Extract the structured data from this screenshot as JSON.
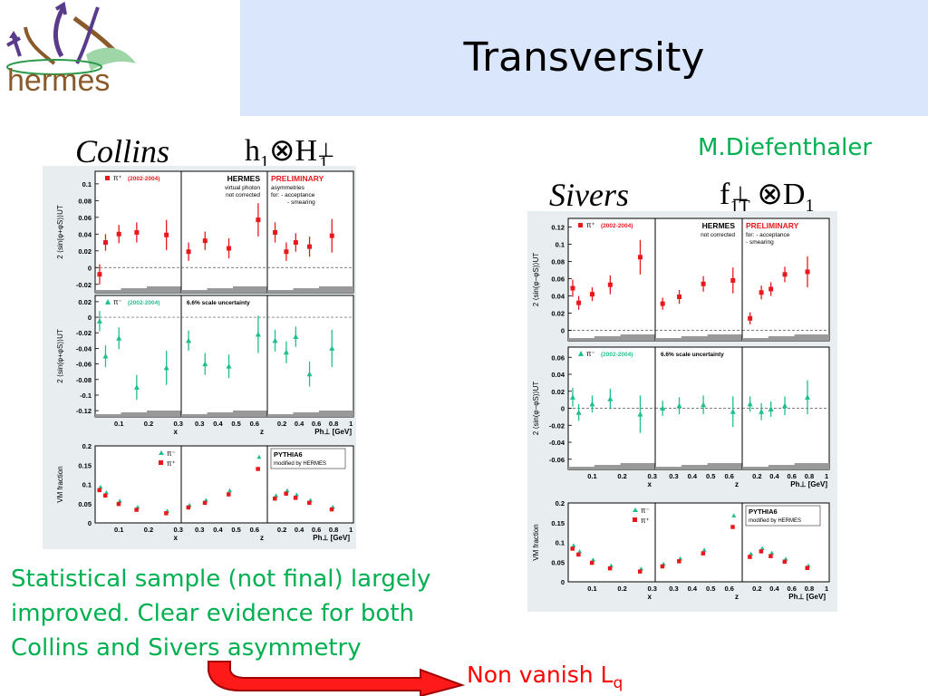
{
  "slide": {
    "title": "Transversity",
    "logo_text": "hermes",
    "author": "M.Diefenthaler",
    "summary_line1": "Statistical sample (not final) largely",
    "summary_line2": "improved. Clear evidence for both",
    "summary_line3": "Collins and Sivers asymmetry",
    "conclusion_main": "Non vanish L",
    "conclusion_sub": "q",
    "collins_label": "Collins",
    "collins_formula_h": "h",
    "collins_formula_h_sub": "1",
    "collins_formula_H": "H",
    "collins_formula_H_sub": "1",
    "collins_formula_H_sup": "⊥",
    "sivers_label": "Sivers",
    "sivers_formula_f": "f",
    "sivers_formula_f_sub": "1T",
    "sivers_formula_f_sup": "⊥",
    "sivers_formula_D": "D",
    "sivers_formula_D_sub": "1",
    "otimes": "⊗",
    "colors": {
      "title_bg": "#d9e6fc",
      "green": "#00b050",
      "red": "#ff0000",
      "pi_plus": "#e8191c",
      "pi_minus": "#1fbf8f",
      "logo_brown": "#8a5a2b",
      "logo_purple": "#5a3a8a"
    }
  },
  "chart_data": [
    {
      "id": "collins",
      "type": "scatter",
      "panel_texts": {
        "hermes": "HERMES",
        "hermes_note1": "virtual photon",
        "hermes_note2": "not corrected",
        "preliminary": "PRELIMINARY",
        "prelim_note1": "asymmetries",
        "prelim_note2": "for: - acceptance",
        "prelim_note3": "- smearing",
        "scale_unc": "6.6% scale uncertainty",
        "pythia1": "PYTHIA6",
        "pythia2": "modified by HERMES"
      },
      "rows": [
        {
          "ylabel": "2 ⟨sin(φ+φS)⟩UT",
          "ylim": [
            -0.03,
            0.115
          ],
          "yticks": [
            "-0.02",
            "0",
            "0.02",
            "0.04",
            "0.06",
            "0.08",
            "0.1"
          ],
          "ytick_vals": [
            -0.02,
            0,
            0.02,
            0.04,
            0.06,
            0.08,
            0.1
          ],
          "legend_symbol": "π⁺",
          "legend_period": "(2002-2004)",
          "series": [
            {
              "name": "π⁺",
              "color": "#e8191c",
              "marker": "square",
              "x_points": [
                [
                  0.035,
                  -0.008,
                  0.012
                ],
                [
                  0.055,
                  0.03,
                  0.01
                ],
                [
                  0.1,
                  0.04,
                  0.011
                ],
                [
                  0.16,
                  0.042,
                  0.012
                ],
                [
                  0.26,
                  0.039,
                  0.018
                ]
              ],
              "z_points": [
                [
                  0.24,
                  0.019,
                  0.011
                ],
                [
                  0.33,
                  0.032,
                  0.011
                ],
                [
                  0.46,
                  0.023,
                  0.012
                ],
                [
                  0.62,
                  0.057,
                  0.02
                ]
              ],
              "pt_points": [
                [
                  0.12,
                  0.042,
                  0.012
                ],
                [
                  0.25,
                  0.019,
                  0.011
                ],
                [
                  0.36,
                  0.03,
                  0.011
                ],
                [
                  0.52,
                  0.025,
                  0.012
                ],
                [
                  0.78,
                  0.038,
                  0.02
                ]
              ]
            }
          ]
        },
        {
          "ylabel": "2 ⟨sin(φ+φS)⟩UT",
          "ylim": [
            -0.128,
            0.028
          ],
          "yticks": [
            "-0.12",
            "-0.1",
            "-0.08",
            "-0.06",
            "-0.04",
            "-0.02",
            "0",
            "0.02"
          ],
          "ytick_vals": [
            -0.12,
            -0.1,
            -0.08,
            -0.06,
            -0.04,
            -0.02,
            0,
            0.02
          ],
          "legend_symbol": "π⁻",
          "legend_period": "(2002-2004)",
          "series": [
            {
              "name": "π⁻",
              "color": "#1fbf8f",
              "marker": "triangle",
              "x_points": [
                [
                  0.035,
                  -0.005,
                  0.013
                ],
                [
                  0.055,
                  -0.05,
                  0.014
                ],
                [
                  0.1,
                  -0.027,
                  0.014
                ],
                [
                  0.16,
                  -0.09,
                  0.016
                ],
                [
                  0.26,
                  -0.065,
                  0.022
                ]
              ],
              "z_points": [
                [
                  0.24,
                  -0.03,
                  0.013
                ],
                [
                  0.33,
                  -0.06,
                  0.014
                ],
                [
                  0.46,
                  -0.063,
                  0.015
                ],
                [
                  0.62,
                  -0.022,
                  0.024
                ]
              ],
              "pt_points": [
                [
                  0.12,
                  -0.03,
                  0.014
                ],
                [
                  0.25,
                  -0.045,
                  0.014
                ],
                [
                  0.36,
                  -0.025,
                  0.013
                ],
                [
                  0.52,
                  -0.073,
                  0.016
                ],
                [
                  0.78,
                  -0.04,
                  0.024
                ]
              ]
            }
          ]
        }
      ],
      "xaxes": [
        {
          "label": "x",
          "ticks": [
            "0.1",
            "0.2",
            "0.3"
          ],
          "tick_vals": [
            0.1,
            0.2,
            0.3
          ],
          "xlim": [
            0.02,
            0.31
          ]
        },
        {
          "label": "z",
          "ticks": [
            "0.3",
            "0.4",
            "0.5",
            "0.6"
          ],
          "tick_vals": [
            0.3,
            0.4,
            0.5,
            0.6
          ],
          "xlim": [
            0.2,
            0.67
          ]
        },
        {
          "label": "Ph⊥ [GeV]",
          "ticks": [
            "0.2",
            "0.4",
            "0.6",
            "0.8",
            "1"
          ],
          "tick_vals": [
            0.2,
            0.4,
            0.6,
            0.8,
            1.0
          ],
          "xlim": [
            0.03,
            1.03
          ]
        }
      ],
      "vm": {
        "ylabel": "VM fraction",
        "ylim": [
          0,
          0.2
        ],
        "yticks": [
          "0",
          "0.05",
          "0.1",
          "0.15",
          "0.2"
        ],
        "ytick_vals": [
          0,
          0.05,
          0.1,
          0.15,
          0.2
        ],
        "legend": [
          "π⁻",
          "π⁺"
        ],
        "x_points": [
          [
            0.035,
            0.092,
            0.088
          ],
          [
            0.055,
            0.078,
            0.074
          ],
          [
            0.1,
            0.056,
            0.052
          ],
          [
            0.16,
            0.04,
            0.037
          ],
          [
            0.26,
            0.03,
            0.028
          ]
        ],
        "z_points": [
          [
            0.24,
            0.045,
            0.043
          ],
          [
            0.33,
            0.058,
            0.055
          ],
          [
            0.46,
            0.083,
            0.077
          ],
          [
            0.62,
            0.17,
            0.143
          ]
        ],
        "pt_points": [
          [
            0.12,
            0.07,
            0.066
          ],
          [
            0.25,
            0.083,
            0.079
          ],
          [
            0.36,
            0.072,
            0.068
          ],
          [
            0.52,
            0.058,
            0.055
          ],
          [
            0.78,
            0.04,
            0.038
          ]
        ]
      }
    },
    {
      "id": "sivers",
      "type": "scatter",
      "panel_texts": {
        "hermes": "HERMES",
        "hermes_note1": "not corrected",
        "hermes_note2": "",
        "preliminary": "PRELIMINARY",
        "prelim_note1": "for: - acceptance",
        "prelim_note2": "- smearing",
        "prelim_note3": "",
        "scale_unc": "6.6% scale uncertainty",
        "pythia1": "PYTHIA6",
        "pythia2": "modified by HERMES"
      },
      "rows": [
        {
          "ylabel": "2 ⟨sin(φ−φS)⟩UT",
          "ylim": [
            -0.012,
            0.13
          ],
          "yticks": [
            "0",
            "0.02",
            "0.04",
            "0.06",
            "0.08",
            "0.1",
            "0.12"
          ],
          "ytick_vals": [
            0,
            0.02,
            0.04,
            0.06,
            0.08,
            0.1,
            0.12
          ],
          "legend_symbol": "π⁺",
          "legend_period": "(2002-2004)",
          "series": [
            {
              "name": "π⁺",
              "color": "#e8191c",
              "marker": "square",
              "x_points": [
                [
                  0.035,
                  0.049,
                  0.01
                ],
                [
                  0.055,
                  0.032,
                  0.008
                ],
                [
                  0.1,
                  0.042,
                  0.008
                ],
                [
                  0.16,
                  0.053,
                  0.011
                ],
                [
                  0.26,
                  0.085,
                  0.02
                ]
              ],
              "z_points": [
                [
                  0.24,
                  0.031,
                  0.007
                ],
                [
                  0.33,
                  0.039,
                  0.008
                ],
                [
                  0.46,
                  0.054,
                  0.009
                ],
                [
                  0.62,
                  0.058,
                  0.015
                ]
              ],
              "pt_points": [
                [
                  0.12,
                  0.014,
                  0.007
                ],
                [
                  0.25,
                  0.044,
                  0.008
                ],
                [
                  0.36,
                  0.048,
                  0.008
                ],
                [
                  0.52,
                  0.065,
                  0.009
                ],
                [
                  0.78,
                  0.068,
                  0.018
                ]
              ]
            }
          ]
        },
        {
          "ylabel": "2 ⟨sin(φ−φS)⟩UT",
          "ylim": [
            -0.072,
            0.072
          ],
          "yticks": [
            "-0.06",
            "-0.04",
            "-0.02",
            "0",
            "0.02",
            "0.04",
            "0.06"
          ],
          "ytick_vals": [
            -0.06,
            -0.04,
            -0.02,
            0,
            0.02,
            0.04,
            0.06
          ],
          "legend_symbol": "π⁻",
          "legend_period": "(2002-2004)",
          "series": [
            {
              "name": "π⁻",
              "color": "#1fbf8f",
              "marker": "triangle",
              "x_points": [
                [
                  0.035,
                  0.013,
                  0.011
                ],
                [
                  0.055,
                  -0.005,
                  0.01
                ],
                [
                  0.1,
                  0.005,
                  0.01
                ],
                [
                  0.16,
                  0.011,
                  0.012
                ],
                [
                  0.26,
                  -0.007,
                  0.022
                ]
              ],
              "z_points": [
                [
                  0.24,
                  0.0,
                  0.009
                ],
                [
                  0.33,
                  0.003,
                  0.01
                ],
                [
                  0.46,
                  0.004,
                  0.011
                ],
                [
                  0.62,
                  -0.004,
                  0.018
                ]
              ],
              "pt_points": [
                [
                  0.12,
                  0.005,
                  0.009
                ],
                [
                  0.25,
                  -0.004,
                  0.01
                ],
                [
                  0.36,
                  -0.001,
                  0.009
                ],
                [
                  0.52,
                  0.003,
                  0.011
                ],
                [
                  0.78,
                  0.013,
                  0.02
                ]
              ]
            }
          ]
        }
      ],
      "xaxes": [
        {
          "label": "x",
          "ticks": [
            "0.1",
            "0.2",
            "0.3"
          ],
          "tick_vals": [
            0.1,
            0.2,
            0.3
          ],
          "xlim": [
            0.02,
            0.31
          ]
        },
        {
          "label": "z",
          "ticks": [
            "0.3",
            "0.4",
            "0.5",
            "0.6"
          ],
          "tick_vals": [
            0.3,
            0.4,
            0.5,
            0.6
          ],
          "xlim": [
            0.2,
            0.67
          ]
        },
        {
          "label": "Ph⊥ [GeV]",
          "ticks": [
            "0.2",
            "0.4",
            "0.6",
            "0.8",
            "1"
          ],
          "tick_vals": [
            0.2,
            0.4,
            0.6,
            0.8,
            1.0
          ],
          "xlim": [
            0.03,
            1.03
          ]
        }
      ],
      "vm": {
        "ylabel": "VM fraction",
        "ylim": [
          0,
          0.2
        ],
        "yticks": [
          "0",
          "0.05",
          "0.1",
          "0.15",
          "0.2"
        ],
        "ytick_vals": [
          0,
          0.05,
          0.1,
          0.15,
          0.2
        ],
        "legend": [
          "π⁻",
          "π⁺"
        ],
        "x_points": [
          [
            0.035,
            0.091,
            0.087
          ],
          [
            0.055,
            0.076,
            0.072
          ],
          [
            0.1,
            0.055,
            0.051
          ],
          [
            0.16,
            0.04,
            0.037
          ],
          [
            0.26,
            0.032,
            0.029
          ]
        ],
        "z_points": [
          [
            0.24,
            0.044,
            0.042
          ],
          [
            0.33,
            0.058,
            0.055
          ],
          [
            0.46,
            0.08,
            0.075
          ],
          [
            0.62,
            0.167,
            0.142
          ]
        ],
        "pt_points": [
          [
            0.12,
            0.07,
            0.066
          ],
          [
            0.25,
            0.084,
            0.08
          ],
          [
            0.36,
            0.072,
            0.068
          ],
          [
            0.52,
            0.057,
            0.054
          ],
          [
            0.78,
            0.04,
            0.038
          ]
        ]
      }
    }
  ]
}
